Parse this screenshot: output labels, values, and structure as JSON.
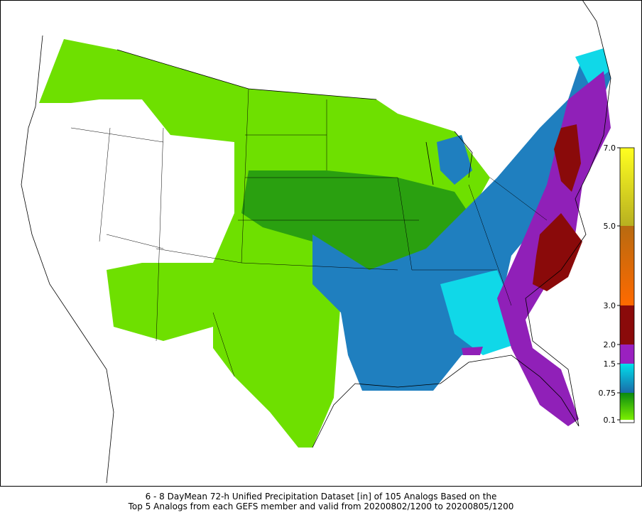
{
  "caption": {
    "line1": "6 - 8 DayMean 72-h Unified Precipitation Dataset [in] of 105 Analogs Based on the",
    "line2": "Top 5 Analogs from each GEFS member and valid from 20200802/1200 to 20200805/1200"
  },
  "colorbar": {
    "ticks": [
      0.1,
      0.75,
      1.5,
      {
        "value": 2,
        "label": "2.0"
      },
      {
        "value": 3,
        "label": "3.0"
      },
      {
        "value": 5,
        "label": "5.0"
      },
      {
        "value": 7,
        "label": "7.0"
      }
    ]
  }
}
